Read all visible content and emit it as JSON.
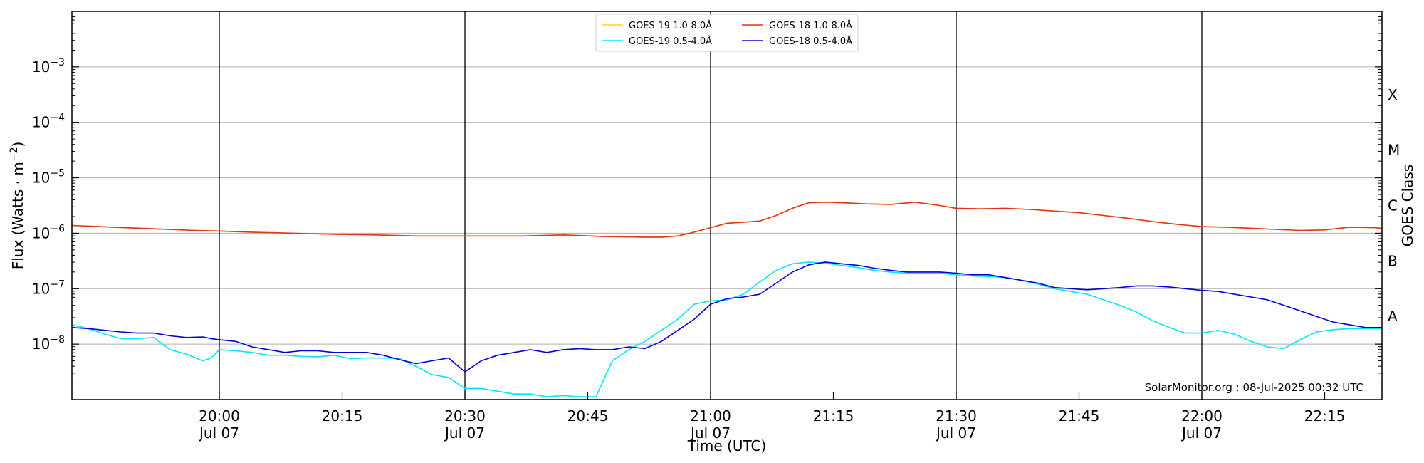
{
  "chart_data": {
    "type": "line",
    "title": "",
    "xlabel": "Time (UTC)",
    "ylabel_main": "Flux (Watts · m",
    "ylabel_exp": "−2",
    "ylabel_close": ")",
    "ylabel_right": "GOES Class",
    "y_scale": "log",
    "ylim": [
      1e-09,
      0.01
    ],
    "xlim": [
      "2025-07-07 19:42",
      "2025-07-07 22:22"
    ],
    "grid": "horizontal",
    "legend_position": "top-center",
    "credit": "SolarMonitor.org : 08-Jul-2025 00:32 UTC",
    "y_ticks": [
      {
        "value": -8,
        "base": "10",
        "exp": "−8"
      },
      {
        "value": -7,
        "base": "10",
        "exp": "−7"
      },
      {
        "value": -6,
        "base": "10",
        "exp": "−6"
      },
      {
        "value": -5,
        "base": "10",
        "exp": "−5"
      },
      {
        "value": -4,
        "base": "10",
        "exp": "−4"
      },
      {
        "value": -3,
        "base": "10",
        "exp": "−3"
      }
    ],
    "class_labels": [
      {
        "label": "A",
        "value": -7.5
      },
      {
        "label": "B",
        "value": -6.5
      },
      {
        "label": "C",
        "value": -5.5
      },
      {
        "label": "M",
        "value": -4.5
      },
      {
        "label": "X",
        "value": -3.5
      }
    ],
    "x_ticks": [
      {
        "t": 18,
        "line1": "20:00",
        "line2": "Jul 07",
        "vline": true
      },
      {
        "t": 33,
        "line1": "20:15",
        "line2": "",
        "vline": false
      },
      {
        "t": 48,
        "line1": "20:30",
        "line2": "Jul 07",
        "vline": true
      },
      {
        "t": 63,
        "line1": "20:45",
        "line2": "",
        "vline": false
      },
      {
        "t": 78,
        "line1": "21:00",
        "line2": "Jul 07",
        "vline": true
      },
      {
        "t": 93,
        "line1": "21:15",
        "line2": "",
        "vline": false
      },
      {
        "t": 108,
        "line1": "21:30",
        "line2": "Jul 07",
        "vline": true
      },
      {
        "t": 123,
        "line1": "21:45",
        "line2": "",
        "vline": false
      },
      {
        "t": 138,
        "line1": "22:00",
        "line2": "Jul 07",
        "vline": true
      },
      {
        "t": 153,
        "line1": "22:15",
        "line2": "",
        "vline": false
      }
    ],
    "series": [
      {
        "name": "GOES-19 1.0-8.0Å",
        "color": "#FFD700",
        "x": [
          0,
          5,
          10,
          15,
          18,
          22,
          27,
          32,
          37,
          42,
          47,
          50,
          55,
          60,
          65,
          70,
          72,
          74,
          76,
          78,
          80,
          82,
          84,
          86,
          88,
          90,
          92,
          94,
          97,
          100,
          103,
          106,
          108,
          111,
          114,
          117,
          120,
          123,
          126,
          129,
          132,
          135,
          138,
          141,
          144,
          147,
          150,
          153,
          156,
          159,
          160
        ],
        "log_values": [
          -5.86,
          -5.89,
          -5.92,
          -5.95,
          -5.96,
          -5.98,
          -6.0,
          -6.02,
          -6.03,
          -6.05,
          -6.05,
          -6.05,
          -6.05,
          -6.03,
          -6.06,
          -6.07,
          -6.07,
          -6.05,
          -5.98,
          -5.9,
          -5.82,
          -5.8,
          -5.78,
          -5.68,
          -5.55,
          -5.45,
          -5.44,
          -5.45,
          -5.47,
          -5.48,
          -5.44,
          -5.5,
          -5.55,
          -5.56,
          -5.55,
          -5.57,
          -5.6,
          -5.63,
          -5.68,
          -5.73,
          -5.79,
          -5.84,
          -5.88,
          -5.89,
          -5.91,
          -5.93,
          -5.95,
          -5.94,
          -5.89,
          -5.9,
          -5.91
        ]
      },
      {
        "name": "GOES-18 1.0-8.0Å",
        "color": "#E8321E",
        "x": [
          0,
          5,
          10,
          15,
          18,
          22,
          27,
          32,
          37,
          42,
          47,
          50,
          55,
          60,
          65,
          70,
          72,
          74,
          76,
          78,
          80,
          82,
          84,
          86,
          88,
          90,
          92,
          94,
          97,
          100,
          103,
          106,
          108,
          111,
          114,
          117,
          120,
          123,
          126,
          129,
          132,
          135,
          138,
          141,
          144,
          147,
          150,
          153,
          156,
          159,
          160
        ],
        "log_values": [
          -5.86,
          -5.89,
          -5.92,
          -5.95,
          -5.96,
          -5.98,
          -6.0,
          -6.02,
          -6.03,
          -6.05,
          -6.05,
          -6.05,
          -6.05,
          -6.03,
          -6.06,
          -6.07,
          -6.07,
          -6.05,
          -5.98,
          -5.9,
          -5.82,
          -5.8,
          -5.78,
          -5.68,
          -5.55,
          -5.45,
          -5.44,
          -5.45,
          -5.47,
          -5.48,
          -5.44,
          -5.5,
          -5.55,
          -5.56,
          -5.55,
          -5.57,
          -5.6,
          -5.63,
          -5.68,
          -5.73,
          -5.79,
          -5.84,
          -5.88,
          -5.89,
          -5.91,
          -5.93,
          -5.95,
          -5.94,
          -5.89,
          -5.9,
          -5.91
        ]
      },
      {
        "name": "GOES-19 0.5-4.0Å",
        "color": "#00E5FF",
        "x": [
          0,
          2,
          4,
          6,
          8,
          10,
          12,
          14,
          16,
          17,
          18,
          20,
          22,
          24,
          26,
          28,
          30,
          32,
          34,
          36,
          38,
          40,
          42,
          44,
          46,
          48,
          50,
          52,
          54,
          56,
          58,
          60,
          62,
          64,
          66,
          68,
          70,
          72,
          74,
          76,
          78,
          80,
          82,
          84,
          86,
          88,
          90,
          92,
          94,
          96,
          98,
          100,
          102,
          104,
          106,
          108,
          110,
          112,
          114,
          116,
          118,
          120,
          122,
          124,
          126,
          128,
          130,
          132,
          134,
          136,
          138,
          140,
          142,
          144,
          146,
          148,
          150,
          152,
          154,
          156,
          158,
          160
        ],
        "log_values": [
          -7.65,
          -7.72,
          -7.82,
          -7.9,
          -7.9,
          -7.88,
          -8.1,
          -8.18,
          -8.3,
          -8.25,
          -8.1,
          -8.12,
          -8.15,
          -8.2,
          -8.2,
          -8.22,
          -8.23,
          -8.2,
          -8.26,
          -8.25,
          -8.25,
          -8.26,
          -8.4,
          -8.55,
          -8.6,
          -8.8,
          -8.8,
          -8.85,
          -8.9,
          -8.9,
          -8.95,
          -8.93,
          -8.95,
          -8.95,
          -8.3,
          -8.1,
          -7.95,
          -7.75,
          -7.55,
          -7.28,
          -7.22,
          -7.2,
          -7.1,
          -6.88,
          -6.67,
          -6.55,
          -6.52,
          -6.54,
          -6.58,
          -6.62,
          -6.67,
          -6.7,
          -6.72,
          -6.72,
          -6.72,
          -6.75,
          -6.77,
          -6.78,
          -6.8,
          -6.85,
          -6.92,
          -7.0,
          -7.05,
          -7.1,
          -7.2,
          -7.3,
          -7.42,
          -7.58,
          -7.7,
          -7.8,
          -7.8,
          -7.75,
          -7.82,
          -7.95,
          -8.05,
          -8.08,
          -7.92,
          -7.78,
          -7.74,
          -7.72,
          -7.72,
          -7.72
        ]
      },
      {
        "name": "GOES-18 0.5-4.0Å",
        "color": "#0000DD",
        "x": [
          0,
          2,
          4,
          6,
          8,
          10,
          12,
          14,
          16,
          17,
          18,
          20,
          22,
          24,
          26,
          28,
          30,
          32,
          34,
          36,
          38,
          40,
          42,
          44,
          46,
          48,
          50,
          52,
          54,
          56,
          58,
          60,
          62,
          64,
          66,
          68,
          70,
          72,
          74,
          76,
          78,
          80,
          82,
          84,
          86,
          88,
          90,
          92,
          94,
          96,
          98,
          100,
          102,
          104,
          106,
          108,
          110,
          112,
          114,
          116,
          118,
          120,
          122,
          124,
          126,
          128,
          130,
          132,
          134,
          136,
          138,
          140,
          142,
          144,
          146,
          148,
          150,
          152,
          154,
          156,
          158,
          160
        ],
        "log_values": [
          -7.7,
          -7.72,
          -7.75,
          -7.78,
          -7.8,
          -7.8,
          -7.85,
          -7.88,
          -7.87,
          -7.9,
          -7.92,
          -7.95,
          -8.05,
          -8.1,
          -8.15,
          -8.12,
          -8.12,
          -8.15,
          -8.15,
          -8.15,
          -8.2,
          -8.28,
          -8.35,
          -8.3,
          -8.25,
          -8.5,
          -8.3,
          -8.2,
          -8.15,
          -8.1,
          -8.15,
          -8.1,
          -8.08,
          -8.1,
          -8.1,
          -8.05,
          -8.08,
          -7.95,
          -7.75,
          -7.55,
          -7.28,
          -7.18,
          -7.15,
          -7.1,
          -6.9,
          -6.7,
          -6.57,
          -6.52,
          -6.55,
          -6.58,
          -6.63,
          -6.67,
          -6.7,
          -6.7,
          -6.7,
          -6.72,
          -6.75,
          -6.75,
          -6.8,
          -6.85,
          -6.9,
          -6.98,
          -7.0,
          -7.02,
          -7.0,
          -6.98,
          -6.95,
          -6.95,
          -6.97,
          -7.0,
          -7.03,
          -7.05,
          -7.1,
          -7.15,
          -7.2,
          -7.3,
          -7.4,
          -7.5,
          -7.6,
          -7.65,
          -7.7,
          -7.7
        ]
      }
    ]
  }
}
